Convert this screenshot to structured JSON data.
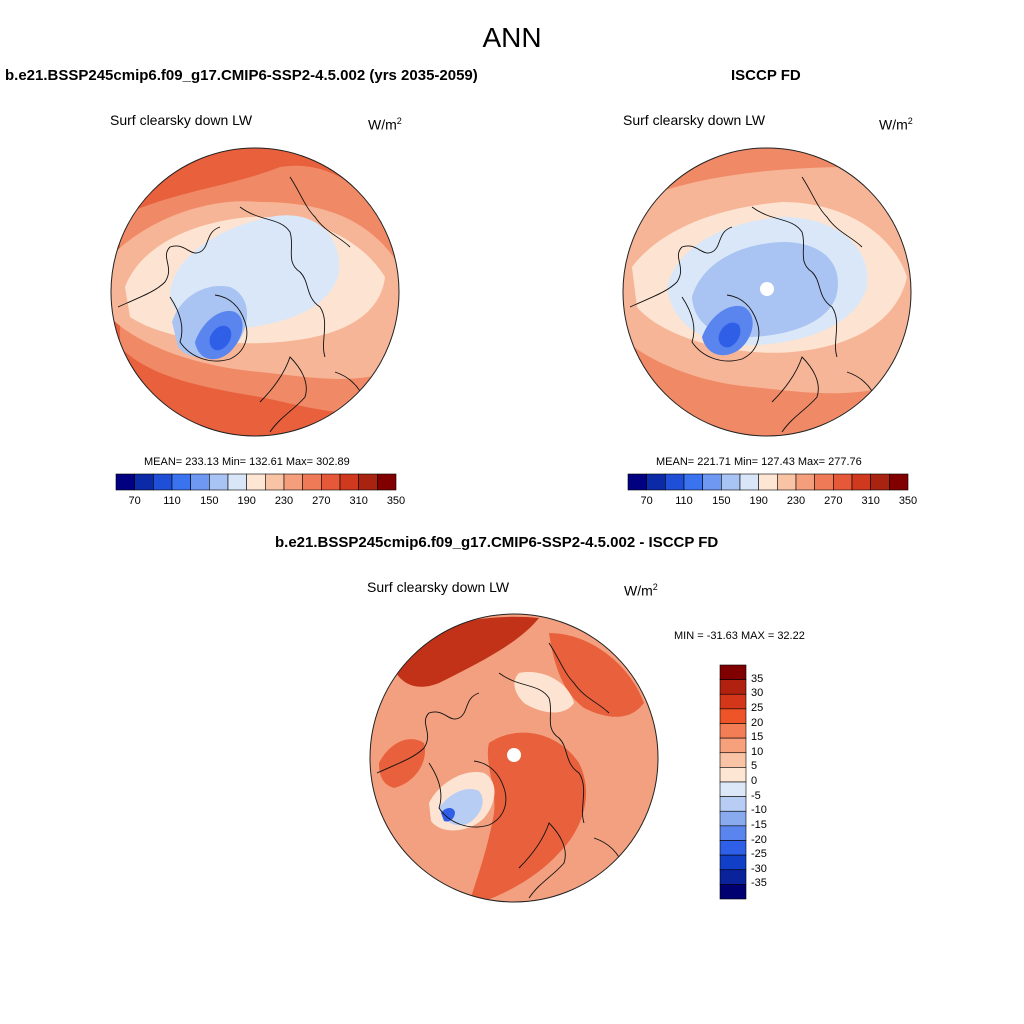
{
  "page": {
    "title": "ANN"
  },
  "panels": [
    {
      "case_title": "b.e21.BSSP245cmip6.f09_g17.CMIP6-SSP2-4.5.002 (yrs 2035-2059)",
      "variable": "Surf clearsky down LW",
      "units": "W/m",
      "units_exponent": "2",
      "stats": "MEAN= 233.13  Min= 132.61  Max= 302.89"
    },
    {
      "case_title": "ISCCP FD",
      "variable": "Surf clearsky down LW",
      "units": "W/m",
      "units_exponent": "2",
      "stats": "MEAN= 221.71  Min= 127.43  Max= 277.76"
    },
    {
      "case_title": "b.e21.BSSP245cmip6.f09_g17.CMIP6-SSP2-4.5.002 - ISCCP FD",
      "variable": "Surf clearsky down LW",
      "units": "W/m",
      "units_exponent": "2",
      "stats": "MIN = -31.63 MAX =  32.22"
    }
  ],
  "colorbars": {
    "absolute": {
      "orientation": "horizontal",
      "colors": [
        "#000080",
        "#0a2aa8",
        "#1f4fd6",
        "#3b72f0",
        "#6f98f2",
        "#a8c4f4",
        "#d8e6f8",
        "#fde6d4",
        "#f9c4a6",
        "#f59e7c",
        "#ee7a57",
        "#e55838",
        "#cf3a1e",
        "#a82410",
        "#800000"
      ],
      "tick_labels": [
        "70",
        "110",
        "150",
        "190",
        "230",
        "270",
        "310",
        "350"
      ]
    },
    "difference": {
      "orientation": "vertical",
      "colors_top_to_bottom": [
        "#800000",
        "#b0220f",
        "#d4361a",
        "#ee5428",
        "#f37d55",
        "#f7a07c",
        "#f9c4a6",
        "#fde6d4",
        "#dce8f8",
        "#b8cdf4",
        "#8aaaf0",
        "#5a85ee",
        "#2f5fe6",
        "#123fc8",
        "#0a229a",
        "#000070"
      ],
      "tick_labels": [
        "35",
        "30",
        "25",
        "20",
        "15",
        "10",
        "5",
        "0",
        "-5",
        "-10",
        "-15",
        "-20",
        "-25",
        "-30",
        "-35"
      ]
    }
  },
  "map": {
    "projection": "polar stereographic (north pole)",
    "field_colors": {
      "edge": "#e8603c",
      "outer": "#f08a66",
      "mid": "#f7b598",
      "inner": "#fde4d2",
      "cold": "#d9e7f8",
      "colder": "#a9c3f2",
      "coldest": "#5a85ee",
      "darkest": "#2f5fe6",
      "diff_warm": "#f2a07f",
      "diff_hot": "#e8603c",
      "diff_hotter": "#c23218"
    }
  }
}
